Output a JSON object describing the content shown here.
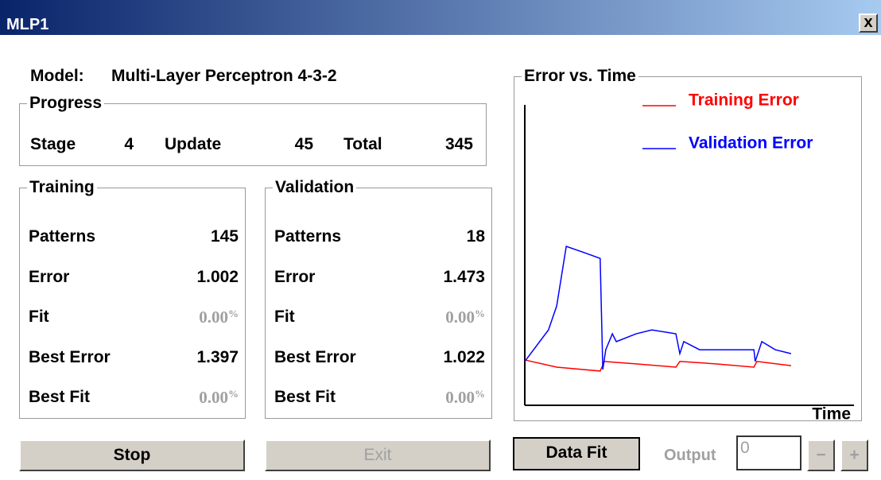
{
  "window": {
    "title": "MLP1",
    "close": "x"
  },
  "model": {
    "label": "Model:",
    "value": "Multi-Layer Perceptron 4-3-2"
  },
  "progress": {
    "title": "Progress",
    "items": [
      {
        "label": "Stage",
        "value": "4"
      },
      {
        "label": "Update",
        "value": "45"
      },
      {
        "label": "Total",
        "value": "345"
      }
    ]
  },
  "training": {
    "title": "Training",
    "rows": [
      {
        "label": "Patterns",
        "value": "145"
      },
      {
        "label": "Error",
        "value": "1.002"
      },
      {
        "label": "Fit",
        "value": "0.00",
        "unit": "%"
      },
      {
        "label": "Best Error",
        "value": "1.397"
      },
      {
        "label": "Best Fit",
        "value": "0.00",
        "unit": "%"
      }
    ]
  },
  "validation": {
    "title": "Validation",
    "rows": [
      {
        "label": "Patterns",
        "value": "18"
      },
      {
        "label": "Error",
        "value": "1.473"
      },
      {
        "label": "Fit",
        "value": "0.00",
        "unit": "%"
      },
      {
        "label": "Best Error",
        "value": "1.022"
      },
      {
        "label": "Best Fit",
        "value": "0.00",
        "unit": "%"
      }
    ]
  },
  "chart_data": {
    "type": "line",
    "title": "Error vs. Time",
    "x_label": "Time",
    "xlim": [
      0,
      100
    ],
    "ylim": [
      0,
      100
    ],
    "series": [
      {
        "name": "Training Error",
        "color": "#ff0000",
        "x": [
          0,
          9.7,
          22.9,
          24.2,
          33.8,
          45.9,
          47.1,
          58,
          69.6,
          70.5,
          80.9
        ],
        "values": [
          15.1,
          12.7,
          11.4,
          14.6,
          13.8,
          12.7,
          14.6,
          13.8,
          12.7,
          14.6,
          13.2
        ]
      },
      {
        "name": "Validation Error",
        "color": "#0000ff",
        "x": [
          0,
          7.2,
          9.7,
          12.6,
          18.1,
          22.9,
          23.7,
          24.6,
          26.6,
          27.8,
          33.8,
          38.6,
          45.9,
          47.1,
          48.3,
          53.1,
          69.6,
          70,
          72,
          76.1,
          80.9
        ],
        "values": [
          14.6,
          25.1,
          33.1,
          52.9,
          50.8,
          48.9,
          11.9,
          18.5,
          23.8,
          21.2,
          23.8,
          25.1,
          23.8,
          17.2,
          21.2,
          18.5,
          18.5,
          14.6,
          21.2,
          18.5,
          17.2
        ]
      }
    ]
  },
  "buttons": {
    "stop": "Stop",
    "exit": "Exit",
    "data_fit": "Data Fit",
    "output_label": "Output",
    "output_value": "0",
    "minus": "−",
    "plus": "+"
  }
}
